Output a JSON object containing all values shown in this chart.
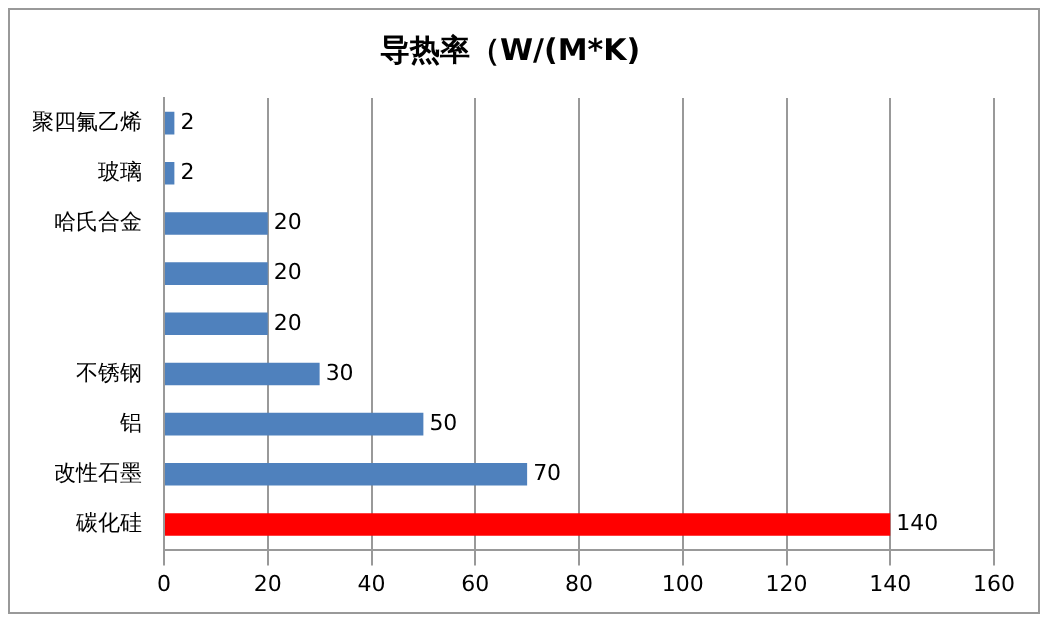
{
  "chart_data": {
    "type": "bar",
    "orientation": "horizontal",
    "title": "导热率（W/(M*K)",
    "categories": [
      "聚四氟乙烯",
      "玻璃",
      "哈氏合金",
      null,
      null,
      "不锈钢",
      "铝",
      "改性石墨",
      "碳化硅"
    ],
    "values": [
      2,
      2,
      20,
      20,
      20,
      30,
      50,
      70,
      140
    ],
    "colors": [
      "#4f81bd",
      "#4f81bd",
      "#4f81bd",
      "#4f81bd",
      "#4f81bd",
      "#4f81bd",
      "#4f81bd",
      "#4f81bd",
      "#ff0000"
    ],
    "xlim": [
      0,
      160
    ],
    "xticks": [
      0,
      20,
      40,
      60,
      80,
      100,
      120,
      140,
      160
    ],
    "grid": "x",
    "data_labels": true
  }
}
